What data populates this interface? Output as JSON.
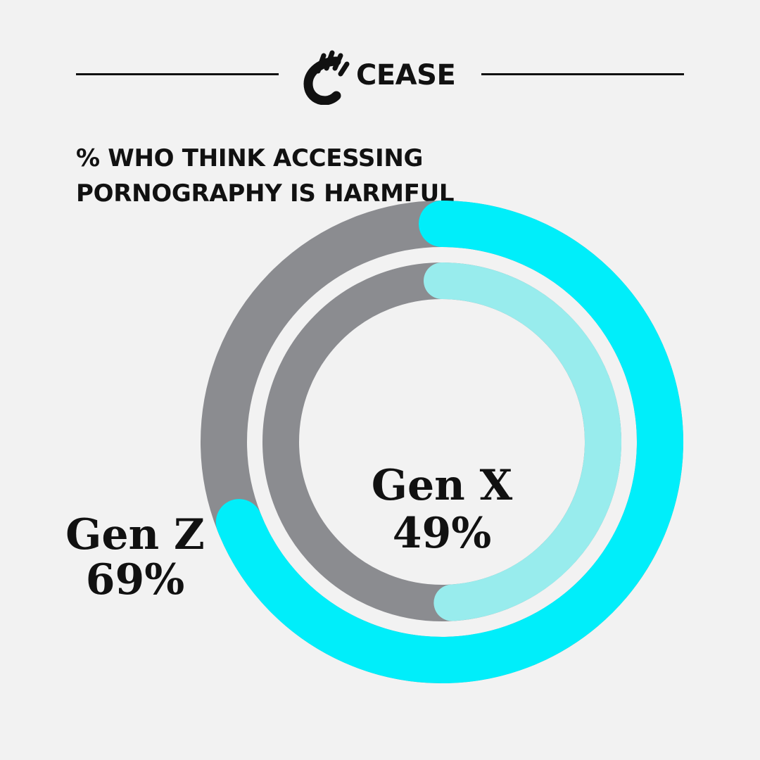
{
  "logo": {
    "text": "CEASE",
    "icon": "hand-icon"
  },
  "colors": {
    "background": "#f2f2f2",
    "track": "#8b8c90",
    "gen_z": "#00eefa",
    "gen_x": "#98eced",
    "text": "#111111"
  },
  "chart_data": {
    "type": "donut",
    "title": "% WHO THINK ACCESSING PORNOGRAPHY IS HARMFUL",
    "series": [
      {
        "name": "Gen Z",
        "value": 69,
        "value_label": "69%",
        "ring": "outer"
      },
      {
        "name": "Gen X",
        "value": 49,
        "value_label": "49%",
        "ring": "inner"
      }
    ],
    "max": 100,
    "start": "top",
    "direction": "clockwise"
  }
}
